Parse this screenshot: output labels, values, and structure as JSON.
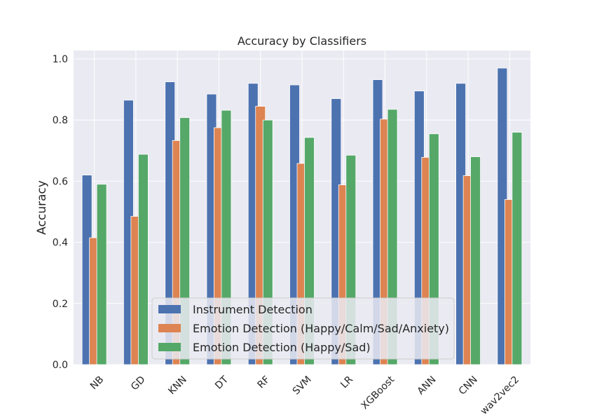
{
  "chart_data": {
    "type": "bar",
    "title": "Accuracy by Classifiers",
    "xlabel": "",
    "ylabel": "Accuracy",
    "ylim": [
      0,
      1.0
    ],
    "yticks": [
      0.0,
      0.2,
      0.4,
      0.6,
      0.8,
      1.0
    ],
    "ytick_labels": [
      "0.0",
      "0.2",
      "0.4",
      "0.6",
      "0.8",
      "1.0"
    ],
    "grid": true,
    "legend_position": "lower-center",
    "categories": [
      "NB",
      "GD",
      "KNN",
      "DT",
      "RF",
      "SVM",
      "LR",
      "XGBoost",
      "ANN",
      "CNN",
      "wav2vec2"
    ],
    "series": [
      {
        "name": "Instrument Detection",
        "color": "#4c72b0",
        "values": [
          0.62,
          0.865,
          0.925,
          0.885,
          0.92,
          0.915,
          0.87,
          0.932,
          0.895,
          0.92,
          0.97
        ]
      },
      {
        "name": "Emotion Detection (Happy/Calm/Sad/Anxiety)",
        "color": "#dd8452",
        "values": [
          0.415,
          0.485,
          0.733,
          0.775,
          0.845,
          0.658,
          0.588,
          0.803,
          0.678,
          0.618,
          0.54
        ]
      },
      {
        "name": "Emotion Detection (Happy/Sad)",
        "color": "#55a868",
        "values": [
          0.59,
          0.688,
          0.808,
          0.832,
          0.8,
          0.743,
          0.685,
          0.835,
          0.755,
          0.68,
          0.76
        ]
      }
    ]
  }
}
